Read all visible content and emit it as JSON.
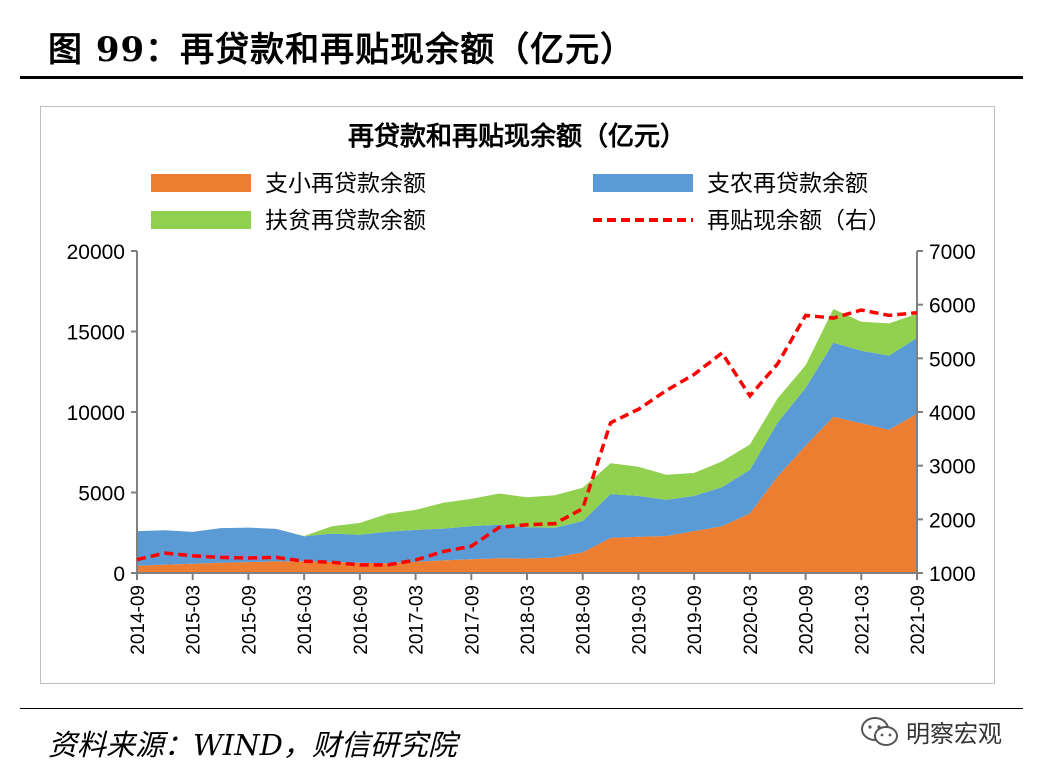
{
  "page_title": "图 99：再贷款和再贴现余额（亿元）",
  "source_note": "资料来源：WIND，财信研究院",
  "watermark": {
    "text": "明察宏观",
    "icon": "wechat-icon"
  },
  "chart_data": {
    "type": "area",
    "title": "再贷款和再贴现余额（亿元）",
    "legend_placement": "top",
    "x": [
      "2014-09",
      "2014-12",
      "2015-03",
      "2015-06",
      "2015-09",
      "2015-12",
      "2016-03",
      "2016-06",
      "2016-09",
      "2016-12",
      "2017-03",
      "2017-06",
      "2017-09",
      "2017-12",
      "2018-03",
      "2018-06",
      "2018-09",
      "2018-12",
      "2019-03",
      "2019-06",
      "2019-09",
      "2019-12",
      "2020-03",
      "2020-06",
      "2020-09",
      "2020-12",
      "2021-03",
      "2021-06",
      "2021-09"
    ],
    "x_tick_labels": [
      "2014-09",
      "2015-03",
      "2015-09",
      "2016-03",
      "2016-09",
      "2017-03",
      "2017-09",
      "2018-03",
      "2018-09",
      "2019-03",
      "2019-09",
      "2020-03",
      "2020-09",
      "2021-03",
      "2021-09"
    ],
    "left_axis": {
      "ylim": [
        0,
        20000
      ],
      "ticks": [
        "0",
        "5000",
        "10000",
        "15000",
        "20000"
      ]
    },
    "right_axis": {
      "ylim": [
        1000,
        7000
      ],
      "ticks": [
        "1000",
        "2000",
        "3000",
        "4000",
        "5000",
        "6000",
        "7000"
      ]
    },
    "grid": false,
    "series": [
      {
        "name": "支小再贷款余额",
        "kind": "area",
        "axis": "left",
        "color": "#ED7D31",
        "values": [
          450,
          520,
          580,
          640,
          680,
          720,
          730,
          690,
          640,
          610,
          690,
          780,
          850,
          920,
          900,
          960,
          1280,
          2180,
          2250,
          2300,
          2600,
          2900,
          3700,
          6000,
          7900,
          9700,
          9300,
          8900,
          9900
        ]
      },
      {
        "name": "支农再贷款余额",
        "kind": "area",
        "axis": "left",
        "color": "#5B9BD5",
        "values": [
          2150,
          2130,
          1970,
          2150,
          2140,
          2020,
          1550,
          1760,
          1740,
          1950,
          1990,
          1980,
          2060,
          2080,
          1930,
          1850,
          1950,
          2720,
          2540,
          2240,
          2190,
          2420,
          2710,
          3350,
          3600,
          4600,
          4500,
          4600,
          4700
        ]
      },
      {
        "name": "扶贫再贷款余额",
        "kind": "area",
        "axis": "left",
        "color": "#92D050",
        "values": [
          0,
          0,
          0,
          0,
          0,
          0,
          20,
          450,
          730,
          1120,
          1240,
          1600,
          1690,
          1940,
          1870,
          2020,
          2070,
          1920,
          1810,
          1560,
          1420,
          1610,
          1570,
          1500,
          1400,
          2100,
          1800,
          2000,
          1500
        ]
      },
      {
        "name": "再贴现余额（右）",
        "kind": "line",
        "axis": "right",
        "color": "#FF0000",
        "dashed": true,
        "values": [
          1250,
          1370,
          1320,
          1290,
          1280,
          1290,
          1220,
          1200,
          1150,
          1150,
          1240,
          1400,
          1500,
          1850,
          1900,
          1920,
          2200,
          3800,
          4050,
          4400,
          4700,
          5100,
          4300,
          4900,
          5800,
          5750,
          5900,
          5800,
          5850
        ]
      }
    ]
  }
}
